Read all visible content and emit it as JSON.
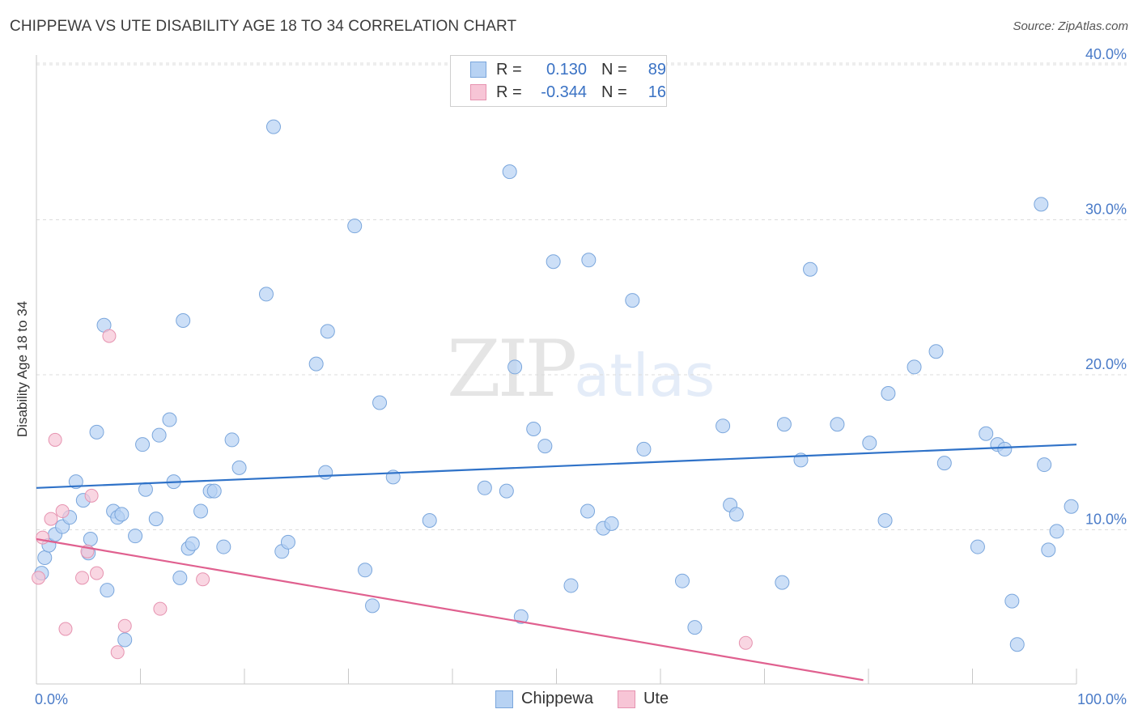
{
  "header": {
    "title": "CHIPPEWA VS UTE DISABILITY AGE 18 TO 34 CORRELATION CHART",
    "source": "Source: ZipAtlas.com"
  },
  "legend": {
    "rows": [
      {
        "r_label": "R =",
        "r_value": "0.130",
        "n_label": "N =",
        "n_value": "89"
      },
      {
        "r_label": "R =",
        "r_value": "-0.344",
        "n_label": "N =",
        "n_value": "16"
      }
    ]
  },
  "bottom_legend": [
    "Chippewa",
    "Ute"
  ],
  "watermark": {
    "zip": "ZIP",
    "atlas": "atlas"
  },
  "colors": {
    "chippewa_fill": "#b7d2f3",
    "chippewa_stroke": "#7aa6dc",
    "chippewa_line": "#2f72c8",
    "ute_fill": "#f7c5d6",
    "ute_stroke": "#e693b0",
    "ute_line": "#e0608f",
    "tick_text": "#4a7bc8",
    "grid": "#dcdcdc"
  },
  "chart_data": {
    "type": "scatter",
    "title": "CHIPPEWA VS UTE DISABILITY AGE 18 TO 34 CORRELATION CHART",
    "xlabel": "",
    "ylabel": "Disability Age 18 to 34",
    "xlim": [
      0,
      100
    ],
    "ylim": [
      0,
      40
    ],
    "x_tick_labels": [
      "0.0%",
      "100.0%"
    ],
    "y_ticks": [
      10,
      20,
      30,
      40
    ],
    "y_tick_labels": [
      "10.0%",
      "20.0%",
      "30.0%",
      "40.0%"
    ],
    "grid": "horizontal dashed",
    "legend_position": "top-center",
    "series": [
      {
        "name": "Chippewa",
        "R": 0.13,
        "N": 89,
        "trend": {
          "x": [
            0,
            100
          ],
          "y": [
            12.7,
            15.5
          ]
        },
        "points": [
          [
            0.5,
            7.2
          ],
          [
            0.8,
            8.2
          ],
          [
            1.2,
            9.0
          ],
          [
            1.8,
            9.7
          ],
          [
            2.5,
            10.2
          ],
          [
            3.2,
            10.8
          ],
          [
            3.8,
            13.1
          ],
          [
            4.5,
            11.9
          ],
          [
            5.0,
            8.5
          ],
          [
            5.2,
            9.4
          ],
          [
            5.8,
            16.3
          ],
          [
            6.5,
            23.2
          ],
          [
            6.8,
            6.1
          ],
          [
            7.4,
            11.2
          ],
          [
            7.8,
            10.8
          ],
          [
            8.2,
            11.0
          ],
          [
            8.5,
            2.9
          ],
          [
            9.5,
            9.6
          ],
          [
            10.2,
            15.5
          ],
          [
            10.5,
            12.6
          ],
          [
            11.5,
            10.7
          ],
          [
            11.8,
            16.1
          ],
          [
            12.8,
            17.1
          ],
          [
            13.2,
            13.1
          ],
          [
            13.8,
            6.9
          ],
          [
            14.1,
            23.5
          ],
          [
            14.6,
            8.8
          ],
          [
            15.0,
            9.1
          ],
          [
            15.8,
            11.2
          ],
          [
            16.7,
            12.5
          ],
          [
            17.1,
            12.5
          ],
          [
            18.0,
            8.9
          ],
          [
            18.8,
            15.8
          ],
          [
            19.5,
            14.0
          ],
          [
            22.1,
            25.2
          ],
          [
            22.8,
            36.0
          ],
          [
            23.6,
            8.6
          ],
          [
            24.2,
            9.2
          ],
          [
            26.9,
            20.7
          ],
          [
            27.8,
            13.7
          ],
          [
            28.0,
            22.8
          ],
          [
            30.6,
            29.6
          ],
          [
            31.6,
            7.4
          ],
          [
            32.3,
            5.1
          ],
          [
            33.0,
            18.2
          ],
          [
            34.3,
            13.4
          ],
          [
            37.8,
            10.6
          ],
          [
            43.1,
            12.7
          ],
          [
            45.2,
            12.5
          ],
          [
            45.5,
            33.1
          ],
          [
            46.0,
            20.5
          ],
          [
            46.6,
            4.4
          ],
          [
            47.8,
            16.5
          ],
          [
            48.9,
            15.4
          ],
          [
            49.7,
            27.3
          ],
          [
            51.4,
            6.4
          ],
          [
            53.0,
            11.2
          ],
          [
            53.1,
            27.4
          ],
          [
            54.5,
            10.1
          ],
          [
            55.3,
            10.4
          ],
          [
            57.3,
            24.8
          ],
          [
            58.4,
            15.2
          ],
          [
            62.1,
            6.7
          ],
          [
            63.3,
            3.7
          ],
          [
            66.0,
            16.7
          ],
          [
            66.7,
            11.6
          ],
          [
            67.3,
            11.0
          ],
          [
            71.7,
            6.6
          ],
          [
            71.9,
            16.8
          ],
          [
            73.5,
            14.5
          ],
          [
            74.4,
            26.8
          ],
          [
            77.0,
            16.8
          ],
          [
            80.1,
            15.6
          ],
          [
            81.6,
            10.6
          ],
          [
            81.9,
            18.8
          ],
          [
            84.4,
            20.5
          ],
          [
            86.5,
            21.5
          ],
          [
            87.3,
            14.3
          ],
          [
            90.5,
            8.9
          ],
          [
            91.3,
            16.2
          ],
          [
            92.4,
            15.5
          ],
          [
            93.1,
            15.2
          ],
          [
            93.8,
            5.4
          ],
          [
            94.3,
            2.6
          ],
          [
            96.6,
            31.0
          ],
          [
            96.9,
            14.2
          ],
          [
            97.3,
            8.7
          ],
          [
            98.1,
            9.9
          ],
          [
            99.5,
            11.5
          ]
        ]
      },
      {
        "name": "Ute",
        "R": -0.344,
        "N": 16,
        "trend": {
          "x": [
            0,
            79.5
          ],
          "y": [
            9.4,
            0.3
          ]
        },
        "points": [
          [
            0.2,
            6.9
          ],
          [
            0.6,
            9.5
          ],
          [
            1.4,
            10.7
          ],
          [
            1.8,
            15.8
          ],
          [
            2.5,
            11.2
          ],
          [
            2.8,
            3.6
          ],
          [
            4.4,
            6.9
          ],
          [
            4.9,
            8.6
          ],
          [
            5.3,
            12.2
          ],
          [
            5.8,
            7.2
          ],
          [
            7.0,
            22.5
          ],
          [
            7.8,
            2.1
          ],
          [
            8.5,
            3.8
          ],
          [
            11.9,
            4.9
          ],
          [
            16.0,
            6.8
          ],
          [
            68.2,
            2.7
          ]
        ]
      }
    ]
  }
}
